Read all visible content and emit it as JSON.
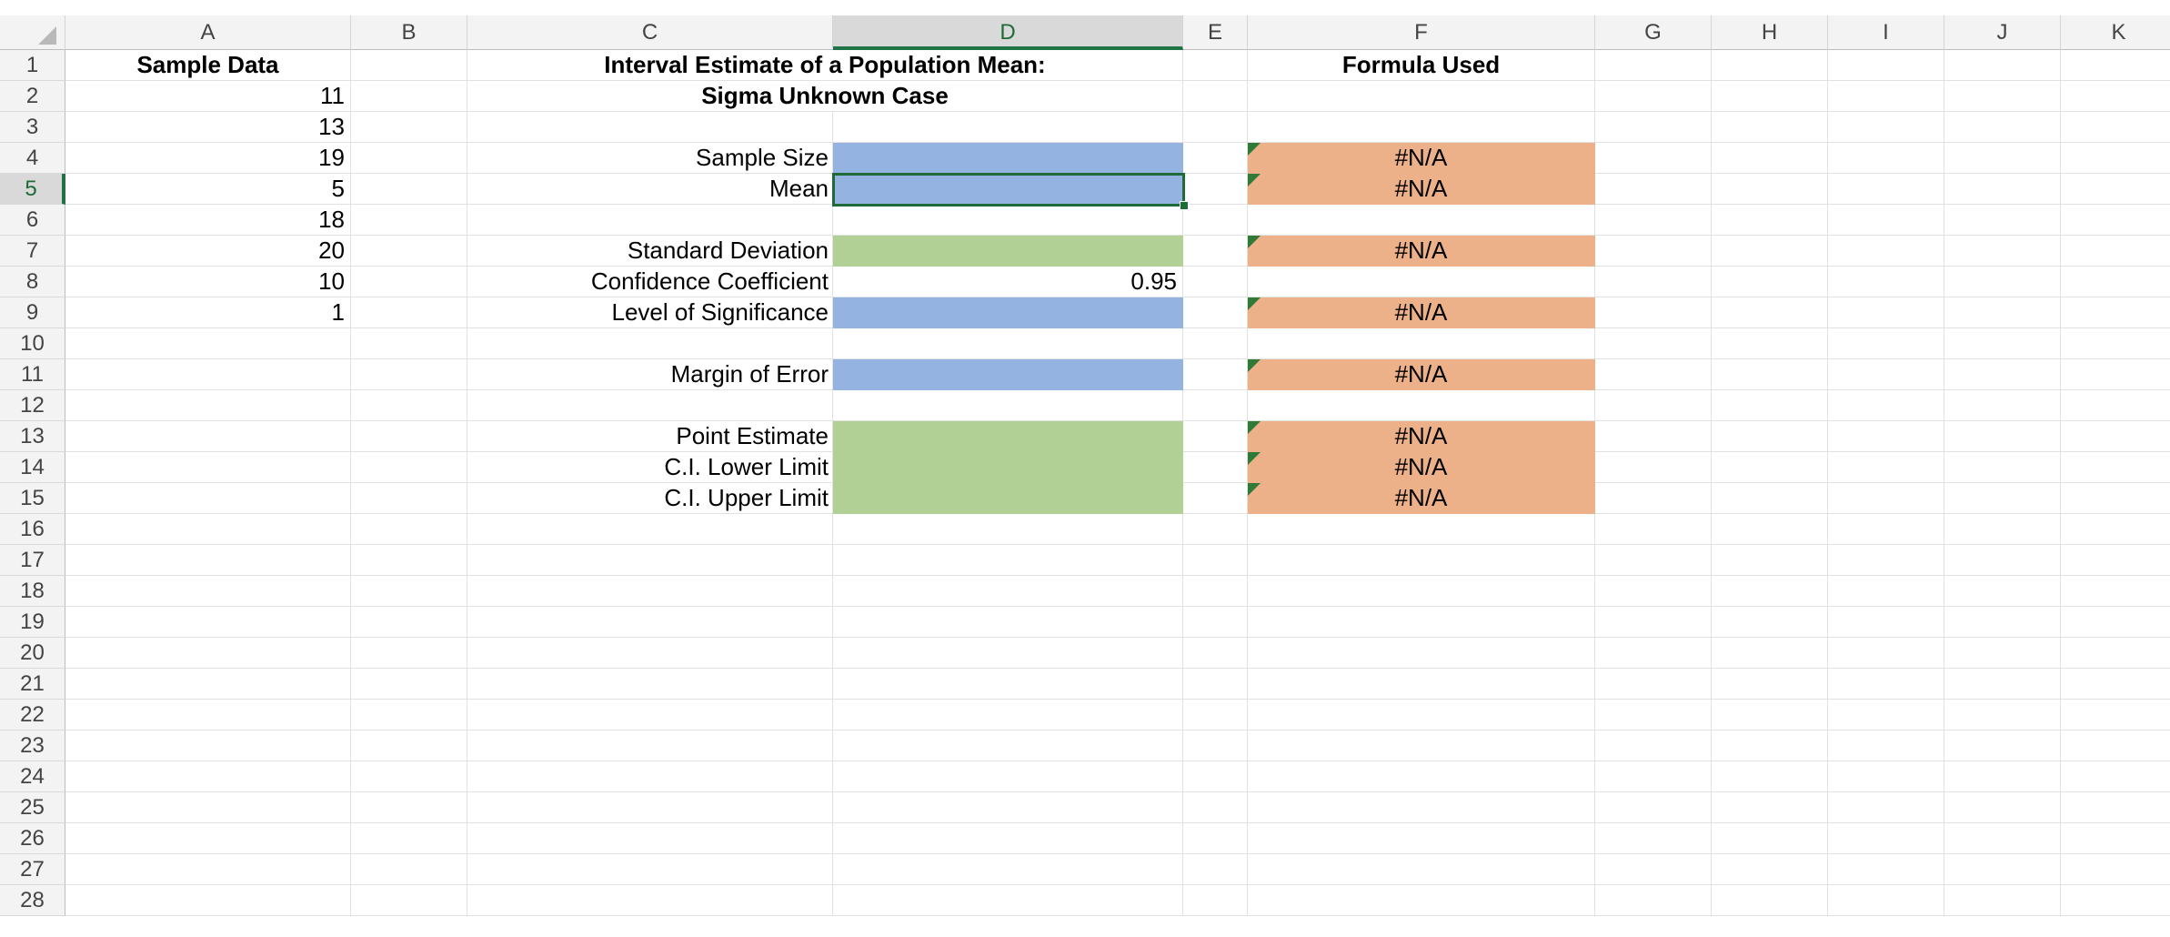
{
  "columns": [
    "A",
    "B",
    "C",
    "D",
    "E",
    "F",
    "G",
    "H",
    "I",
    "J",
    "K"
  ],
  "rows": [
    "1",
    "2",
    "3",
    "4",
    "5",
    "6",
    "7",
    "8",
    "9",
    "10",
    "11",
    "12",
    "13",
    "14",
    "15",
    "16",
    "17",
    "18",
    "19",
    "20",
    "21",
    "22",
    "23",
    "24",
    "25",
    "26",
    "27",
    "28"
  ],
  "active_cell": "D5",
  "cells": {
    "A1": "Sample Data",
    "A2": "11",
    "A3": "13",
    "A4": "19",
    "A5": "5",
    "A6": "18",
    "A7": "20",
    "A8": "10",
    "A9": "1",
    "C1": "Interval Estimate of a Population Mean:",
    "C2": "Sigma Unknown Case",
    "C4": "Sample Size",
    "C5": "Mean",
    "C7": "Standard Deviation",
    "C8": "Confidence Coefficient",
    "C9": "Level of Significance",
    "C11": "Margin of Error",
    "C13": "Point Estimate",
    "C14": "C.I. Lower Limit",
    "C15": "C.I. Upper Limit",
    "D8": "0.95",
    "F1": "Formula Used",
    "F4": "#N/A",
    "F5": "#N/A",
    "F7": "#N/A",
    "F9": "#N/A",
    "F11": "#N/A",
    "F13": "#N/A",
    "F14": "#N/A",
    "F15": "#N/A"
  },
  "colors": {
    "input_blue": "#95b3e0",
    "calc_green": "#b1d095",
    "formula_orange": "#ecb189",
    "excel_green": "#217346"
  }
}
